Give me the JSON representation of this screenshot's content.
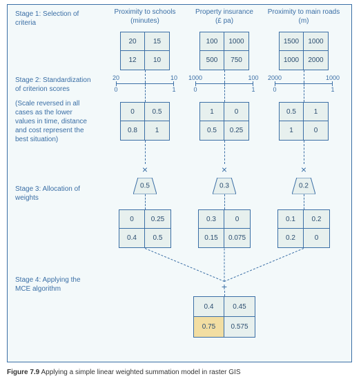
{
  "caption_prefix": "Figure 7.9",
  "caption_text": "Applying a simple linear weighted summation model in raster GIS",
  "frame_border": "#3a6ea5",
  "frame_bg": "#f3f9fa",
  "stages": {
    "s1": "Stage 1: Selection of criteria",
    "s2": "Stage 2: Standardization of criterion scores",
    "s2note": "(Scale reversed in all cases as the lower values in time, distance and cost represent the best situation)",
    "s3": "Stage 3: Allocation of weights",
    "s4": "Stage 4: Applying the MCE algorithm"
  },
  "columns": {
    "c1": {
      "title_l1": "Proximity to schools",
      "title_l2": "(minutes)",
      "stage1": [
        "20",
        "15",
        "12",
        "10"
      ],
      "scale": {
        "top_left": "20",
        "top_right": "10",
        "bot_left": "0",
        "bot_right": "1"
      },
      "stage2": [
        "0",
        "0.5",
        "0.8",
        "1"
      ],
      "weight": "0.5",
      "stage3v": [
        "0",
        "0.25",
        "0.4",
        "0.5"
      ]
    },
    "c2": {
      "title_l1": "Property insurance",
      "title_l2": "(£ pa)",
      "stage1": [
        "100",
        "1000",
        "500",
        "750"
      ],
      "scale": {
        "top_left": "1000",
        "top_right": "100",
        "bot_left": "0",
        "bot_right": "1"
      },
      "stage2": [
        "1",
        "0",
        "0.5",
        "0.25"
      ],
      "weight": "0.3",
      "stage3v": [
        "0.3",
        "0",
        "0.15",
        "0.075"
      ]
    },
    "c3": {
      "title_l1": "Proximity to main roads",
      "title_l2": "(m)",
      "stage1": [
        "1500",
        "1000",
        "1000",
        "2000"
      ],
      "scale": {
        "top_left": "2000",
        "top_right": "1000",
        "bot_left": "0",
        "bot_right": "1"
      },
      "stage2": [
        "0.5",
        "1",
        "1",
        "0"
      ],
      "weight": "0.2",
      "stage3v": [
        "0.1",
        "0.2",
        "0.2",
        "0"
      ]
    }
  },
  "result": {
    "values": [
      "0.4",
      "0.45",
      "0.75",
      "0.575"
    ],
    "highlight_index": 2
  }
}
